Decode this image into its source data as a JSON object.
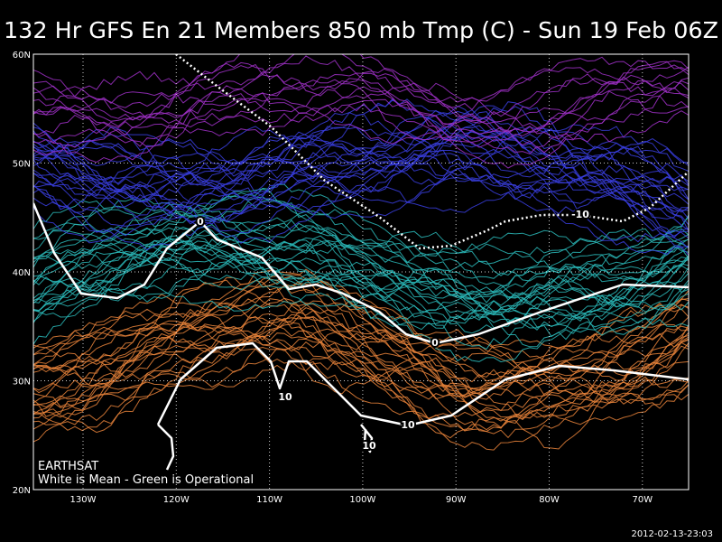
{
  "title": "132 Hr GFS En 21 Members 850 mb Tmp (C) - Sun 19 Feb 06Z",
  "map": {
    "lat_labels": [
      "60N",
      "50N",
      "40N",
      "30N",
      "20N"
    ],
    "lon_labels": [
      "130W",
      "120W",
      "110W",
      "100W",
      "90W",
      "80W",
      "70W"
    ],
    "contour_labels": [
      "0",
      "-10",
      "0",
      "10",
      "10",
      "10"
    ],
    "source": "EARTHSAT",
    "legend": "White is Mean - Green is Operational"
  },
  "timestamp": "2012-02-13-23:03"
}
